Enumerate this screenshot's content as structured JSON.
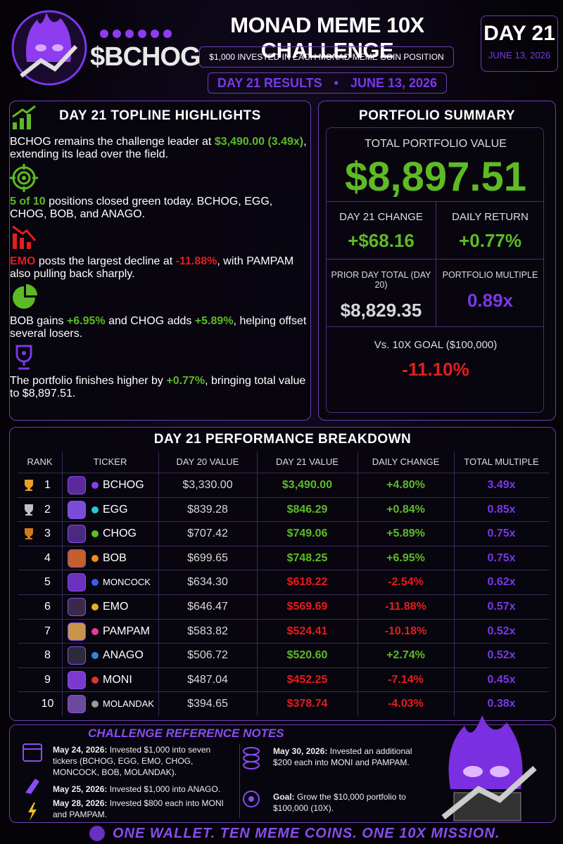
{
  "header": {
    "brand": "$BCHOG",
    "title": "MONAD MEME 10X CHALLENGE",
    "subtitle": "$1,000 INVESTED IN EACH MONAD MEME COIN POSITION",
    "day_badge": "DAY 21",
    "day_date": "JUNE 13, 2026",
    "results_label": "DAY 21 RESULTS",
    "results_date": "JUNE 13, 2026"
  },
  "highlights": {
    "title": "DAY 21 TOPLINE HIGHLIGHTS",
    "items": [
      {
        "icon": "growth",
        "segments": [
          {
            "text": "BCHOG remains the challenge leader at "
          },
          {
            "text": "$3,490.00 (3.49x)",
            "tone": "green"
          },
          {
            "text": ", extending its lead over the field."
          }
        ]
      },
      {
        "icon": "target",
        "segments": [
          {
            "text": "5 of 10",
            "tone": "green"
          },
          {
            "text": " positions closed green today. BCHOG, EGG, CHOG, BOB, and ANAGO."
          }
        ]
      },
      {
        "icon": "decline",
        "segments": [
          {
            "text": "EMO",
            "tone": "red"
          },
          {
            "text": " posts the largest decline at "
          },
          {
            "text": "-11.88%",
            "tone": "red"
          },
          {
            "text": ", with PAMPAM also pulling back sharply."
          }
        ]
      },
      {
        "icon": "pie",
        "segments": [
          {
            "text": "BOB gains "
          },
          {
            "text": "+6.95%",
            "tone": "green"
          },
          {
            "text": " and CHOG adds "
          },
          {
            "text": "+5.89%",
            "tone": "green"
          },
          {
            "text": ", helping offset several losers."
          }
        ]
      },
      {
        "icon": "trophy",
        "segments": [
          {
            "text": "The portfolio finishes higher by "
          },
          {
            "text": "+0.77%",
            "tone": "green"
          },
          {
            "text": ", bringing total value to $8,897.51."
          }
        ]
      }
    ]
  },
  "summary": {
    "title": "PORTFOLIO SUMMARY",
    "total_label": "TOTAL PORTFOLIO VALUE",
    "total_value": "$8,897.51",
    "cells": [
      {
        "label": "DAY 21 CHANGE",
        "value": "+$68.16",
        "tone": "green"
      },
      {
        "label": "DAILY RETURN",
        "value": "+0.77%",
        "tone": "green"
      },
      {
        "label": "PRIOR DAY TOTAL (DAY 20)",
        "value": "$8,829.35",
        "tone": "gray"
      },
      {
        "label": "PORTFOLIO MULTIPLE",
        "value": "0.89x",
        "tone": "purple"
      }
    ],
    "goal_label": "Vs. 10X GOAL ($100,000)",
    "goal_value": "-11.10%"
  },
  "table": {
    "title": "DAY 21 PERFORMANCE BREAKDOWN",
    "headers": [
      "RANK",
      "TICKER",
      "DAY 20 VALUE",
      "DAY 21 VALUE",
      "DAILY CHANGE",
      "TOTAL MULTIPLE"
    ],
    "rows": [
      {
        "rank": "1",
        "ticker": "BCHOG",
        "day20": "$3,330.00",
        "day21": "$3,490.00",
        "change": "+4.80%",
        "multiple": "3.49x",
        "dot": "#8b3cf0",
        "avatar": "#5a2a9a"
      },
      {
        "rank": "2",
        "ticker": "EGG",
        "day20": "$839.28",
        "day21": "$846.29",
        "change": "+0.84%",
        "multiple": "0.85x",
        "dot": "#2ec4d6",
        "avatar": "#7b4cd8"
      },
      {
        "rank": "3",
        "ticker": "CHOG",
        "day20": "$707.42",
        "day21": "$749.06",
        "change": "+5.89%",
        "multiple": "0.75x",
        "dot": "#5cc02a",
        "avatar": "#4a2a80"
      },
      {
        "rank": "4",
        "ticker": "BOB",
        "day20": "$699.65",
        "day21": "$748.25",
        "change": "+6.95%",
        "multiple": "0.75x",
        "dot": "#f08a1c",
        "avatar": "#c4602a"
      },
      {
        "rank": "5",
        "ticker": "MONCOCK",
        "day20": "$634.30",
        "day21": "$618.22",
        "change": "-2.54%",
        "multiple": "0.62x",
        "dot": "#3a5cf0",
        "avatar": "#6a30c0"
      },
      {
        "rank": "6",
        "ticker": "EMO",
        "day20": "$646.47",
        "day21": "$569.69",
        "change": "-11.88%",
        "multiple": "0.57x",
        "dot": "#e0b020",
        "avatar": "#3a2a4a"
      },
      {
        "rank": "7",
        "ticker": "PAMPAM",
        "day20": "$583.82",
        "day21": "$524.41",
        "change": "-10.18%",
        "multiple": "0.52x",
        "dot": "#e83a9a",
        "avatar": "#c8944a"
      },
      {
        "rank": "8",
        "ticker": "ANAGO",
        "day20": "$506.72",
        "day21": "$520.60",
        "change": "+2.74%",
        "multiple": "0.52x",
        "dot": "#2a8ad8",
        "avatar": "#2a2a3a"
      },
      {
        "rank": "9",
        "ticker": "MONI",
        "day20": "$487.04",
        "day21": "$452.25",
        "change": "-7.14%",
        "multiple": "0.45x",
        "dot": "#e83030",
        "avatar": "#7a3ad0"
      },
      {
        "rank": "10",
        "ticker": "MOLANDAK",
        "day20": "$394.65",
        "day21": "$378.74",
        "change": "-4.03%",
        "multiple": "0.38x",
        "dot": "#9a9a9a",
        "avatar": "#6a4a9a"
      }
    ]
  },
  "notes": {
    "title": "CHALLENGE REFERENCE NOTES",
    "items": [
      {
        "date": "May 24, 2026:",
        "text": " Invested $1,000 into seven tickers (BCHOG, EGG, EMO, CHOG, MONCOCK, BOB, MOLANDAK)."
      },
      {
        "date": "May 25, 2026:",
        "text": " Invested $1,000 into ANAGO."
      },
      {
        "date": "May 28, 2026:",
        "text": " Invested $800 each into MONI and PAMPAM."
      },
      {
        "date": "May 30, 2026:",
        "text": " Invested an additional $200 each into MONI and PAMPAM."
      },
      {
        "date": "Goal:",
        "text": " Grow the $10,000 portfolio to $100,000 (10X)."
      }
    ]
  },
  "footer": {
    "tagline": "ONE WALLET. TEN MEME COINS. ONE 10X MISSION."
  }
}
